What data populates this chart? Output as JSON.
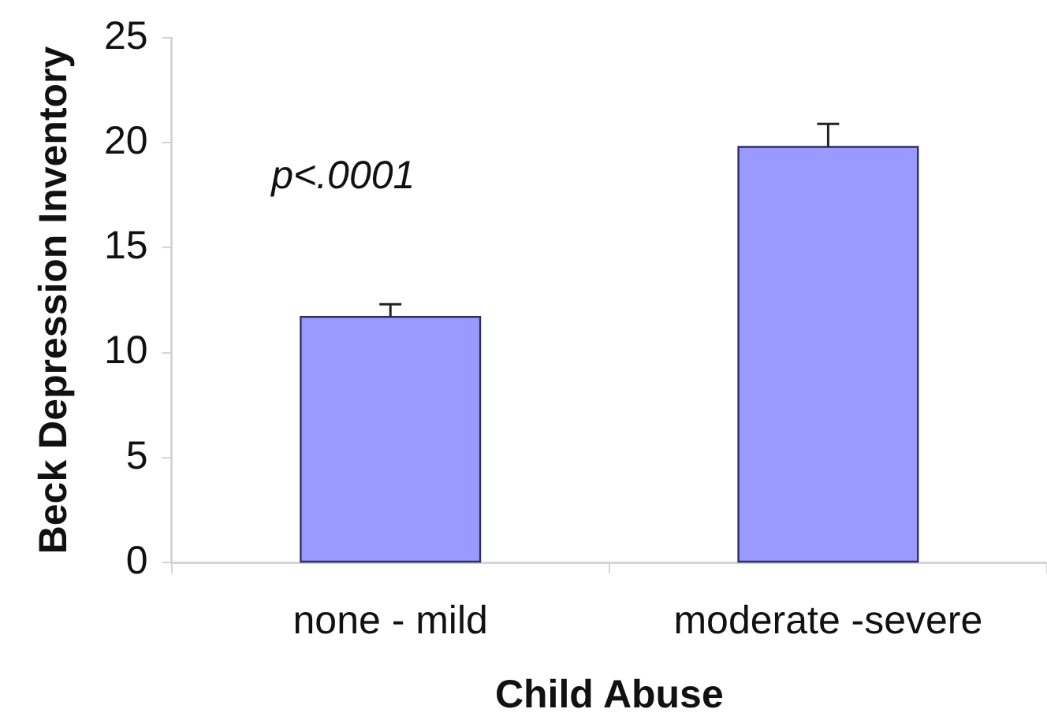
{
  "chart_data": {
    "type": "bar",
    "categories": [
      "none - mild",
      "moderate -severe"
    ],
    "values": [
      11.7,
      19.8
    ],
    "errors": [
      [
        11.7,
        12.3
      ],
      [
        19.8,
        20.9
      ]
    ],
    "color": "#9999ff",
    "xlabel": "Child Abuse",
    "ylabel": "Beck Depression Inventory",
    "ylim": [
      0,
      25
    ],
    "yticks": [
      0,
      5,
      10,
      15,
      20,
      25
    ],
    "annotations": [
      "p<.0001"
    ]
  }
}
